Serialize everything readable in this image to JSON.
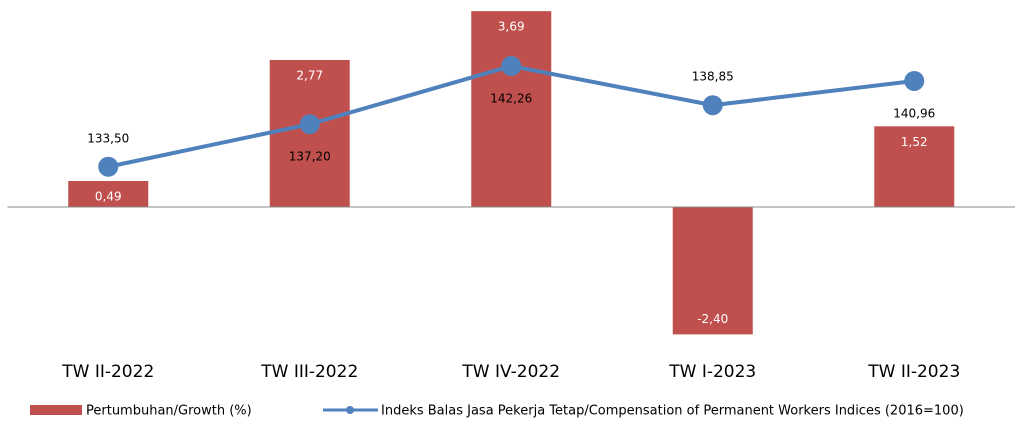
{
  "chart_data": {
    "type": "bar",
    "categories": [
      "TW II-2022",
      "TW III-2022",
      "TW IV-2022",
      "TW I-2023",
      "TW II-2023"
    ],
    "ylim": [
      -2.6,
      3.9
    ],
    "y2lim": [
      118,
      148
    ],
    "series": [
      {
        "name": "Pertumbuhan/Growth (%)",
        "type": "bar",
        "color": "#c0504d",
        "values": [
          0.49,
          2.77,
          3.69,
          -2.4,
          1.52
        ],
        "value_labels": [
          "0,49",
          "2,77",
          "3,69",
          "-2,40",
          "1,52"
        ]
      },
      {
        "name": "Indeks Balas Jasa Pekerja Tetap/Compensation of Permanent Workers Indices (2016=100)",
        "type": "line",
        "axis": "y2",
        "color": "#4f81bd",
        "values": [
          133.5,
          137.2,
          142.26,
          138.85,
          140.96
        ],
        "value_labels": [
          "133,50",
          "137,20",
          "142,26",
          "138,85",
          "140,96"
        ]
      }
    ]
  }
}
